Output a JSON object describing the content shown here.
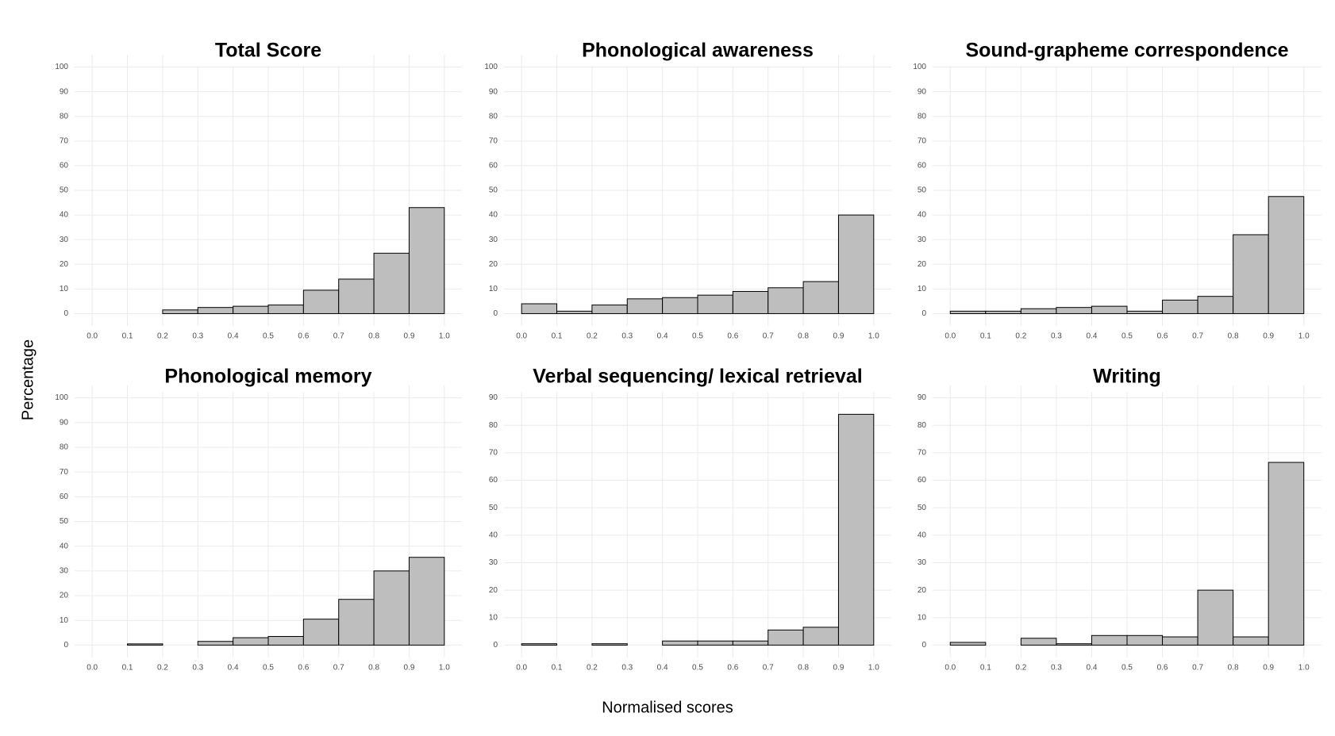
{
  "shared_axes": {
    "y_label": "Percentage",
    "x_label": "Normalised scores"
  },
  "chart_data": [
    {
      "type": "histogram",
      "title": "Total Score",
      "bins": [
        0,
        0.1,
        0.2,
        0.3,
        0.4,
        0.5,
        0.6,
        0.7,
        0.8,
        0.9,
        1
      ],
      "counts": [
        0,
        0,
        1.5,
        2.5,
        3,
        3.5,
        9.5,
        14,
        24.5,
        43
      ],
      "color": "#bebebe",
      "xlim": [
        -0.05,
        1.05
      ],
      "ylim": [
        -5,
        105
      ],
      "xticks": [
        {
          "value": 0,
          "label": "0.0"
        },
        0.1,
        0.2,
        0.3,
        0.4,
        0.5,
        0.6,
        0.7,
        0.8,
        0.9,
        {
          "value": 1,
          "label": "1.0"
        }
      ],
      "yticks": [
        0,
        10,
        20,
        30,
        40,
        50,
        60,
        70,
        80,
        90,
        100
      ],
      "grid": true
    },
    {
      "type": "histogram",
      "title": "Phonological awareness",
      "bins": [
        0,
        0.1,
        0.2,
        0.3,
        0.4,
        0.5,
        0.6,
        0.7,
        0.8,
        0.9,
        1
      ],
      "counts": [
        4,
        1,
        3.5,
        6,
        6.5,
        7.5,
        9,
        10.5,
        13,
        40
      ],
      "color": "#bebebe",
      "xlim": [
        -0.05,
        1.05
      ],
      "ylim": [
        -5,
        105
      ],
      "xticks": [
        {
          "value": 0,
          "label": "0.0"
        },
        0.1,
        0.2,
        0.3,
        0.4,
        0.5,
        0.6,
        0.7,
        0.8,
        0.9,
        {
          "value": 1,
          "label": "1.0"
        }
      ],
      "yticks": [
        0,
        10,
        20,
        30,
        40,
        50,
        60,
        70,
        80,
        90,
        100
      ],
      "grid": true
    },
    {
      "type": "histogram",
      "title": "Sound-grapheme correspondence",
      "bins": [
        0,
        0.1,
        0.2,
        0.3,
        0.4,
        0.5,
        0.6,
        0.7,
        0.8,
        0.9,
        1
      ],
      "counts": [
        1,
        1,
        2,
        2.5,
        3,
        1,
        5.5,
        7,
        32,
        47.5
      ],
      "color": "#bebebe",
      "xlim": [
        -0.05,
        1.05
      ],
      "ylim": [
        -5,
        105
      ],
      "xticks": [
        {
          "value": 0,
          "label": "0.0"
        },
        0.1,
        0.2,
        0.3,
        0.4,
        0.5,
        0.6,
        0.7,
        0.8,
        0.9,
        {
          "value": 1,
          "label": "1.0"
        }
      ],
      "yticks": [
        0,
        10,
        20,
        30,
        40,
        50,
        60,
        70,
        80,
        90,
        100
      ],
      "grid": true
    },
    {
      "type": "histogram",
      "title": "Phonological memory",
      "bins": [
        0,
        0.1,
        0.2,
        0.3,
        0.4,
        0.5,
        0.6,
        0.7,
        0.8,
        0.9,
        1
      ],
      "counts": [
        0,
        0.5,
        0,
        1.5,
        3,
        3.5,
        10.5,
        18.5,
        30,
        35.5
      ],
      "color": "#bebebe",
      "xlim": [
        -0.05,
        1.05
      ],
      "ylim": [
        -5,
        105
      ],
      "xticks": [
        {
          "value": 0,
          "label": "0.0"
        },
        0.1,
        0.2,
        0.3,
        0.4,
        0.5,
        0.6,
        0.7,
        0.8,
        0.9,
        {
          "value": 1,
          "label": "1.0"
        }
      ],
      "yticks": [
        0,
        10,
        20,
        30,
        40,
        50,
        60,
        70,
        80,
        90,
        100
      ],
      "grid": true
    },
    {
      "type": "histogram",
      "title": "Verbal sequencing/ lexical retrieval",
      "bins": [
        0,
        0.1,
        0.2,
        0.3,
        0.4,
        0.5,
        0.6,
        0.7,
        0.8,
        0.9,
        1
      ],
      "counts": [
        0.5,
        0,
        0.5,
        0,
        1.5,
        1.5,
        1.5,
        5.5,
        6.5,
        84
      ],
      "color": "#bebebe",
      "xlim": [
        -0.05,
        1.05
      ],
      "ylim": [
        -4.5,
        94.5
      ],
      "xticks": [
        {
          "value": 0,
          "label": "0.0"
        },
        0.1,
        0.2,
        0.3,
        0.4,
        0.5,
        0.6,
        0.7,
        0.8,
        0.9,
        {
          "value": 1,
          "label": "1.0"
        }
      ],
      "yticks": [
        0,
        10,
        20,
        30,
        40,
        50,
        60,
        70,
        80,
        90
      ],
      "grid": true
    },
    {
      "type": "histogram",
      "title": "Writing",
      "bins": [
        0,
        0.1,
        0.2,
        0.3,
        0.4,
        0.5,
        0.6,
        0.7,
        0.8,
        0.9,
        1
      ],
      "counts": [
        1,
        0,
        2.5,
        0.5,
        3.5,
        3.5,
        3,
        20,
        3,
        66.5
      ],
      "color": "#bebebe",
      "xlim": [
        -0.05,
        1.05
      ],
      "ylim": [
        -4.5,
        94.5
      ],
      "xticks": [
        {
          "value": 0,
          "label": "0.0"
        },
        0.1,
        0.2,
        0.3,
        0.4,
        0.5,
        0.6,
        0.7,
        0.8,
        0.9,
        {
          "value": 1,
          "label": "1.0"
        }
      ],
      "yticks": [
        0,
        10,
        20,
        30,
        40,
        50,
        60,
        70,
        80,
        90
      ],
      "grid": true
    }
  ]
}
